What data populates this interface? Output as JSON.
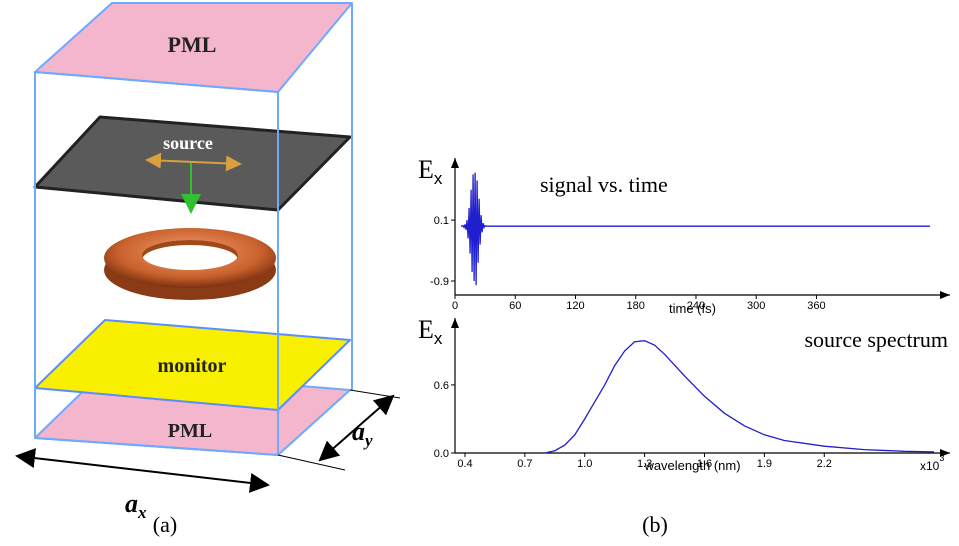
{
  "diagram": {
    "pml_top": "PML",
    "source": "source",
    "monitor": "monitor",
    "pml_bottom": "PML",
    "ax": "a",
    "ax_sub": "x",
    "ay": "a",
    "ay_sub": "y",
    "caption": "(a)"
  },
  "caption_b": "(b)",
  "chart_data": [
    {
      "type": "line",
      "y_label": "E",
      "y_label_sub": "x",
      "annotation": "signal vs. time",
      "x_label": "time (fs)",
      "x": [
        6,
        7,
        8,
        9,
        10,
        11,
        12,
        13,
        14,
        15,
        16,
        17,
        18,
        19,
        20,
        21,
        22,
        23,
        24,
        25,
        26,
        27,
        28,
        29,
        30,
        31,
        473
      ],
      "values": [
        0,
        0,
        0.01,
        -0.02,
        0.03,
        -0.06,
        0.1,
        -0.2,
        0.3,
        -0.45,
        0.6,
        -0.75,
        0.85,
        -0.9,
        0.88,
        -0.97,
        0.75,
        -0.6,
        0.45,
        -0.3,
        0.18,
        -0.1,
        0.05,
        -0.02,
        0.01,
        0,
        0
      ],
      "color": "#1f1fd0",
      "xlim": [
        0,
        493
      ],
      "xticks": [
        0,
        60,
        120,
        180,
        240,
        300,
        360
      ],
      "ylim": [
        -1.13,
        1.12
      ],
      "yticks": [
        0.1,
        -0.9
      ]
    },
    {
      "type": "line",
      "y_label": "E",
      "y_label_sub": "x",
      "annotation": "source spectrum",
      "x_label": "wavelength (nm)",
      "x_unit": "x10",
      "x_unit_exp": "3",
      "x": [
        0.8,
        0.85,
        0.9,
        0.95,
        1.0,
        1.05,
        1.1,
        1.15,
        1.2,
        1.25,
        1.3,
        1.35,
        1.4,
        1.5,
        1.6,
        1.7,
        1.8,
        1.9,
        2.0,
        2.2,
        2.4,
        2.6,
        2.75
      ],
      "values": [
        0,
        0.02,
        0.07,
        0.16,
        0.3,
        0.45,
        0.6,
        0.77,
        0.9,
        0.98,
        0.99,
        0.95,
        0.87,
        0.68,
        0.5,
        0.35,
        0.24,
        0.16,
        0.11,
        0.06,
        0.03,
        0.015,
        0.01
      ],
      "color": "#1f1fd0",
      "xlim": [
        0.35,
        2.83
      ],
      "xticks": [
        0.4,
        0.7,
        {
          "value": 1.0,
          "label": "1.0"
        },
        1.3,
        1.6,
        1.9,
        2.2
      ],
      "ylim": [
        0,
        1.19
      ],
      "yticks": [
        {
          "value": 0,
          "label": "0.0"
        },
        0.6
      ]
    }
  ]
}
